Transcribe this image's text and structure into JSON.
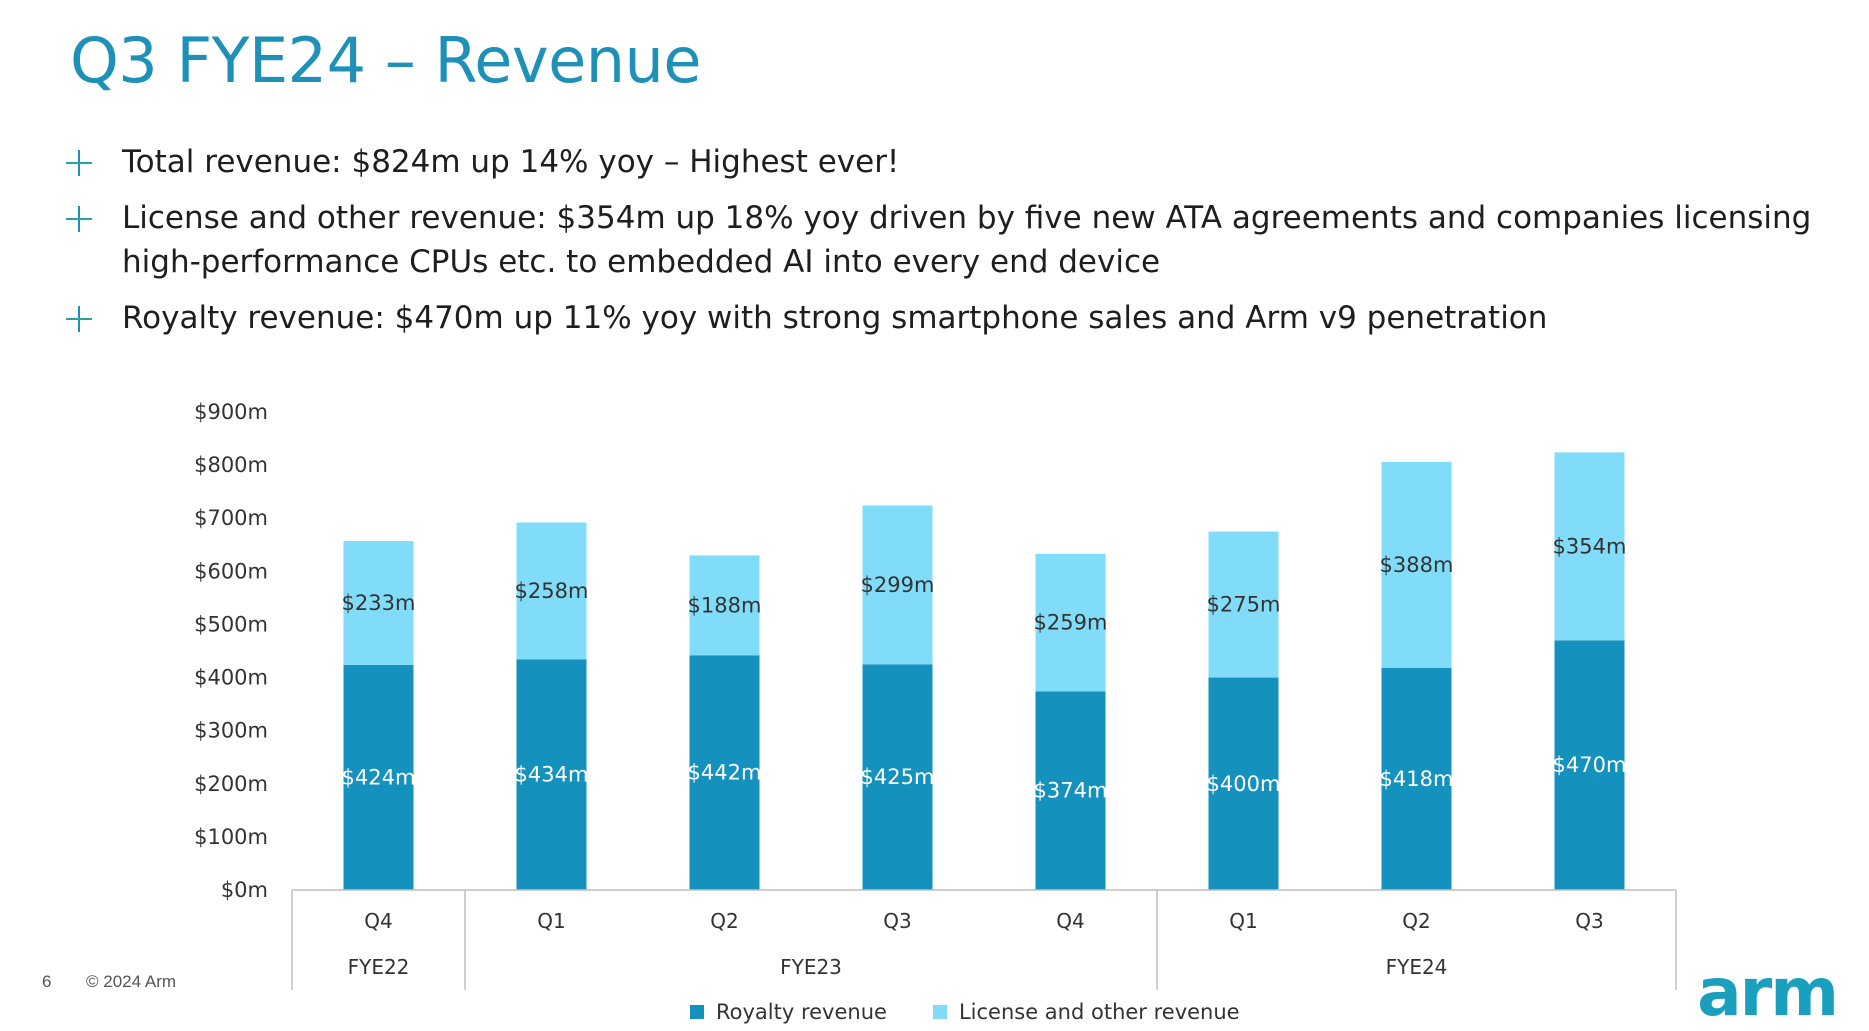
{
  "slide": {
    "title": "Q3 FYE24 – Revenue",
    "bullets": [
      "Total revenue: $824m up 14% yoy – Highest ever!",
      "License and other revenue: $354m up 18% yoy driven by five new ATA agreements and companies licensing high-performance CPUs etc. to embedded AI into every end device",
      "Royalty revenue: $470m up 11% yoy with strong smartphone sales and Arm v9 penetration"
    ],
    "page_number": "6",
    "copyright": "© 2024 Arm",
    "logo_text": "arm"
  },
  "legend": {
    "royalty": "Royalty revenue",
    "license": "License and other revenue"
  },
  "colors": {
    "royalty": "#1591be",
    "license": "#80dcf9",
    "accent": "#1f91b8"
  },
  "chart_data": {
    "type": "bar",
    "stacked": true,
    "categories": [
      "Q4",
      "Q1",
      "Q2",
      "Q3",
      "Q4",
      "Q1",
      "Q2",
      "Q3"
    ],
    "groups": [
      {
        "label": "FYE22",
        "count": 1
      },
      {
        "label": "FYE23",
        "count": 4
      },
      {
        "label": "FYE24",
        "count": 3
      }
    ],
    "series": [
      {
        "name": "Royalty revenue",
        "values": [
          424,
          434,
          442,
          425,
          374,
          400,
          418,
          470
        ],
        "labels": [
          "$424m",
          "$434m",
          "$442m",
          "$425m",
          "$374m",
          "$400m",
          "$418m",
          "$470m"
        ]
      },
      {
        "name": "License and other revenue",
        "values": [
          233,
          258,
          188,
          299,
          259,
          275,
          388,
          354
        ],
        "labels": [
          "$233m",
          "$258m",
          "$188m",
          "$299m",
          "$259m",
          "$275m",
          "$388m",
          "$354m"
        ]
      }
    ],
    "y_ticks": [
      "$0m",
      "$100m",
      "$200m",
      "$300m",
      "$400m",
      "$500m",
      "$600m",
      "$700m",
      "$800m",
      "$900m"
    ],
    "ylim": [
      0,
      900
    ],
    "y_step": 100,
    "legend_position": "bottom"
  }
}
